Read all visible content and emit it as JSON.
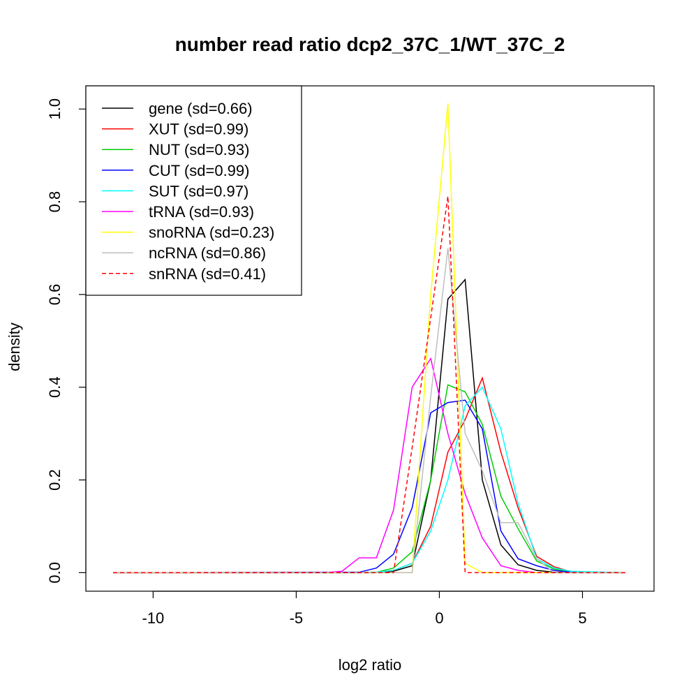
{
  "chart_data": {
    "type": "line",
    "title": "number read ratio dcp2_37C_1/WT_37C_2",
    "xlabel": "log2 ratio",
    "ylabel": "density",
    "xlim": [
      -12.35,
      7.5
    ],
    "ylim": [
      -0.04,
      1.05
    ],
    "x_ticks": [
      -10,
      -5,
      0,
      5
    ],
    "y_ticks": [
      0.0,
      0.2,
      0.4,
      0.6,
      0.8,
      1.0
    ],
    "x_tick_labels": [
      "-10",
      "-5",
      "0",
      "5"
    ],
    "y_tick_labels": [
      "0.0",
      "0.2",
      "0.4",
      "0.6",
      "0.8",
      "1.0"
    ],
    "grid": false,
    "legend_position": "top-left",
    "series": [
      {
        "name": "gene (sd=0.66)",
        "color": "#000000",
        "dash": "solid",
        "x": [
          -11.4,
          -2.8,
          -2.2,
          -1.6,
          -0.95,
          -0.3,
          0.3,
          0.9,
          1.5,
          2.15,
          2.75,
          3.4,
          4.0,
          4.6,
          6.5
        ],
        "y": [
          0,
          0,
          0,
          0.003,
          0.015,
          0.2,
          0.59,
          0.632,
          0.2,
          0.06,
          0.017,
          0.005,
          0.001,
          0,
          0
        ]
      },
      {
        "name": "XUT (sd=0.99)",
        "color": "#ff0000",
        "dash": "solid",
        "x": [
          -11.4,
          -2.8,
          -2.2,
          -1.6,
          -0.95,
          -0.3,
          0.3,
          0.9,
          1.5,
          2.15,
          2.75,
          3.4,
          4.0,
          4.6,
          6.5
        ],
        "y": [
          0,
          0,
          0.001,
          0.005,
          0.02,
          0.1,
          0.26,
          0.33,
          0.42,
          0.26,
          0.14,
          0.035,
          0.013,
          0.002,
          0
        ]
      },
      {
        "name": "NUT (sd=0.93)",
        "color": "#00cd00",
        "dash": "solid",
        "x": [
          -11.4,
          -2.8,
          -2.2,
          -1.6,
          -0.95,
          -0.3,
          0.3,
          0.9,
          1.5,
          2.15,
          2.75,
          3.4,
          4.0,
          4.6,
          6.5
        ],
        "y": [
          0,
          0,
          0.001,
          0.01,
          0.045,
          0.2,
          0.405,
          0.39,
          0.32,
          0.165,
          0.095,
          0.025,
          0.008,
          0.002,
          0
        ]
      },
      {
        "name": "CUT (sd=0.99)",
        "color": "#0000ff",
        "dash": "solid",
        "x": [
          -11.4,
          -2.8,
          -2.2,
          -1.6,
          -0.95,
          -0.3,
          0.3,
          0.9,
          1.5,
          2.15,
          2.75,
          3.4,
          4.0,
          4.6,
          6.5
        ],
        "y": [
          0,
          0.001,
          0.01,
          0.04,
          0.14,
          0.345,
          0.367,
          0.372,
          0.31,
          0.09,
          0.03,
          0.015,
          0.005,
          0.001,
          0
        ]
      },
      {
        "name": "SUT (sd=0.97)",
        "color": "#00ffff",
        "dash": "solid",
        "x": [
          -11.4,
          -2.8,
          -2.2,
          -1.6,
          -0.95,
          -0.3,
          0.3,
          0.9,
          1.5,
          2.15,
          2.75,
          3.4,
          4.0,
          4.6,
          6.5
        ],
        "y": [
          0,
          0,
          0.001,
          0.005,
          0.02,
          0.09,
          0.2,
          0.36,
          0.4,
          0.31,
          0.15,
          0.03,
          0.01,
          0.003,
          0
        ]
      },
      {
        "name": "tRNA (sd=0.93)",
        "color": "#ff00ff",
        "dash": "solid",
        "x": [
          -11.4,
          -4.0,
          -3.4,
          -2.8,
          -2.2,
          -1.6,
          -0.95,
          -0.3,
          0.3,
          0.9,
          1.5,
          2.15,
          2.75,
          3.4,
          6.5
        ],
        "y": [
          0,
          0,
          0.003,
          0.032,
          0.032,
          0.135,
          0.4,
          0.462,
          0.3,
          0.17,
          0.075,
          0.015,
          0.005,
          0,
          0
        ]
      },
      {
        "name": "snoRNA (sd=0.23)",
        "color": "#ffff00",
        "dash": "solid",
        "x": [
          -11.4,
          -1.6,
          -0.95,
          -0.3,
          0.3,
          0.9,
          1.5,
          6.5
        ],
        "y": [
          0,
          0,
          0,
          0.6,
          1.012,
          0.02,
          0,
          0
        ]
      },
      {
        "name": "ncRNA (sd=0.86)",
        "color": "#bebebe",
        "dash": "solid",
        "x": [
          -11.4,
          -1.6,
          -0.95,
          -0.3,
          0.3,
          0.9,
          1.5,
          2.15,
          2.75,
          3.4,
          4.0,
          6.5
        ],
        "y": [
          0,
          0,
          0,
          0.38,
          0.7,
          0.3,
          0.22,
          0.108,
          0.108,
          0.03,
          0,
          0
        ]
      },
      {
        "name": "snRNA (sd=0.41)",
        "color": "#ff0000",
        "dash": "dashed",
        "x": [
          -11.4,
          -1.6,
          -0.95,
          -0.3,
          0.3,
          0.9,
          6.5
        ],
        "y": [
          0,
          0,
          0.27,
          0.55,
          0.812,
          0,
          0
        ]
      }
    ]
  }
}
